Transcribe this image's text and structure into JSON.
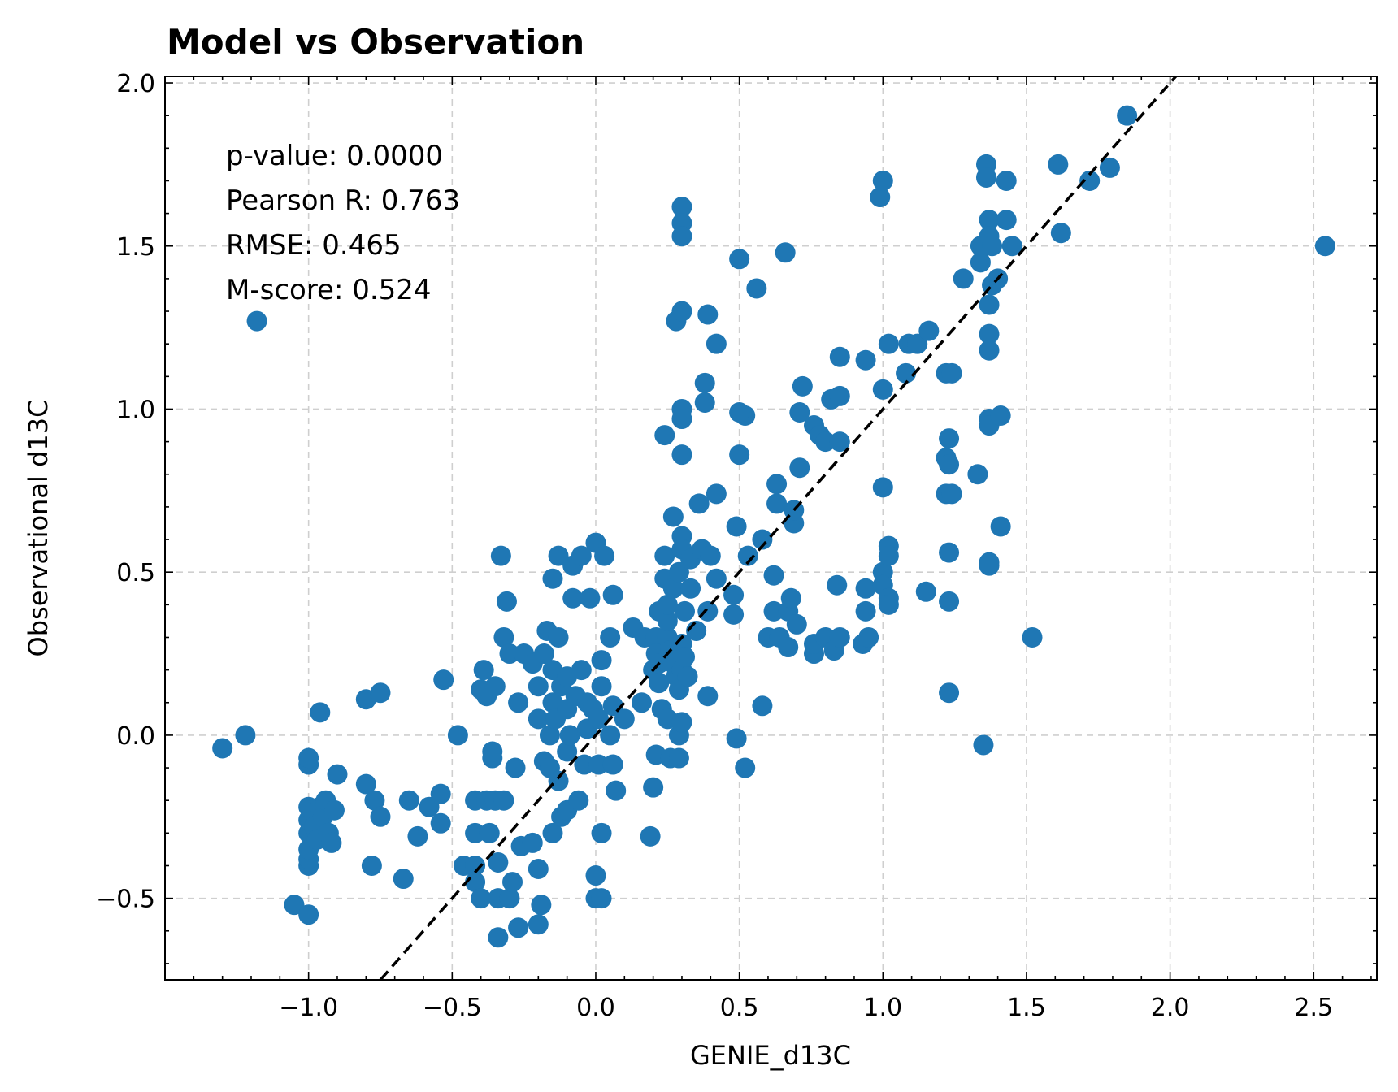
{
  "chart_data": {
    "type": "scatter",
    "title": "Model vs Observation",
    "xlabel": "GENIE_d13C",
    "ylabel": "Observational d13C",
    "xlim": [
      -1.5,
      2.72
    ],
    "ylim": [
      -0.75,
      2.02
    ],
    "x_ticks": [
      -1.0,
      -0.5,
      0.0,
      0.5,
      1.0,
      1.5,
      2.0,
      2.5
    ],
    "x_tick_labels": [
      "−1.0",
      "−0.5",
      "0.0",
      "0.5",
      "1.0",
      "1.5",
      "2.0",
      "2.5"
    ],
    "y_ticks": [
      -0.5,
      0.0,
      0.5,
      1.0,
      1.5,
      2.0
    ],
    "y_tick_labels": [
      "−0.5",
      "0.0",
      "0.5",
      "1.0",
      "1.5",
      "2.0"
    ],
    "grid": true,
    "marker_color": "#1f77b4",
    "reference_line": {
      "type": "identity",
      "style": "dashed",
      "color": "#000000"
    },
    "stats": {
      "p_value": "p-value: 0.0000",
      "pearson_r": "Pearson R: 0.763",
      "rmse": "RMSE: 0.465",
      "m_score": "M-score: 0.524"
    },
    "points": [
      [
        -1.3,
        -0.04
      ],
      [
        -1.22,
        0.0
      ],
      [
        -1.18,
        1.27
      ],
      [
        -1.05,
        -0.52
      ],
      [
        -1.0,
        -0.55
      ],
      [
        -1.0,
        -0.4
      ],
      [
        -1.0,
        -0.38
      ],
      [
        -1.0,
        -0.35
      ],
      [
        -1.0,
        -0.3
      ],
      [
        -1.0,
        -0.26
      ],
      [
        -1.0,
        -0.22
      ],
      [
        -1.0,
        -0.09
      ],
      [
        -1.0,
        -0.07
      ],
      [
        -0.98,
        -0.28
      ],
      [
        -0.97,
        -0.32
      ],
      [
        -0.96,
        -0.22
      ],
      [
        -0.95,
        -0.25
      ],
      [
        -0.94,
        -0.2
      ],
      [
        -0.93,
        -0.3
      ],
      [
        -0.92,
        -0.33
      ],
      [
        -0.91,
        -0.23
      ],
      [
        -0.9,
        -0.12
      ],
      [
        -0.96,
        0.07
      ],
      [
        -0.8,
        0.11
      ],
      [
        -0.8,
        -0.15
      ],
      [
        -0.77,
        -0.2
      ],
      [
        -0.78,
        -0.4
      ],
      [
        -0.75,
        -0.25
      ],
      [
        -0.75,
        0.13
      ],
      [
        -0.67,
        -0.44
      ],
      [
        -0.65,
        -0.2
      ],
      [
        -0.62,
        -0.31
      ],
      [
        -0.58,
        -0.22
      ],
      [
        -0.54,
        -0.27
      ],
      [
        -0.54,
        -0.18
      ],
      [
        -0.53,
        0.17
      ],
      [
        -0.48,
        0.0
      ],
      [
        -0.46,
        -0.4
      ],
      [
        -0.42,
        -0.3
      ],
      [
        -0.42,
        -0.2
      ],
      [
        -0.42,
        -0.4
      ],
      [
        -0.42,
        -0.45
      ],
      [
        -0.4,
        -0.5
      ],
      [
        -0.4,
        0.14
      ],
      [
        -0.39,
        0.2
      ],
      [
        -0.38,
        -0.2
      ],
      [
        -0.38,
        0.12
      ],
      [
        -0.37,
        -0.3
      ],
      [
        -0.36,
        -0.07
      ],
      [
        -0.36,
        -0.05
      ],
      [
        -0.35,
        0.15
      ],
      [
        -0.35,
        -0.2
      ],
      [
        -0.34,
        -0.39
      ],
      [
        -0.34,
        -0.5
      ],
      [
        -0.34,
        -0.62
      ],
      [
        -0.33,
        0.55
      ],
      [
        -0.32,
        0.3
      ],
      [
        -0.32,
        -0.2
      ],
      [
        -0.31,
        0.41
      ],
      [
        -0.3,
        -0.5
      ],
      [
        -0.3,
        0.25
      ],
      [
        -0.29,
        -0.45
      ],
      [
        -0.28,
        -0.1
      ],
      [
        -0.27,
        0.1
      ],
      [
        -0.27,
        -0.59
      ],
      [
        -0.26,
        -0.34
      ],
      [
        -0.25,
        0.25
      ],
      [
        -0.22,
        0.22
      ],
      [
        -0.22,
        -0.33
      ],
      [
        -0.2,
        0.15
      ],
      [
        -0.2,
        0.05
      ],
      [
        -0.2,
        -0.41
      ],
      [
        -0.2,
        -0.58
      ],
      [
        -0.19,
        -0.52
      ],
      [
        -0.18,
        0.25
      ],
      [
        -0.18,
        -0.08
      ],
      [
        -0.17,
        0.32
      ],
      [
        -0.16,
        0.0
      ],
      [
        -0.16,
        -0.1
      ],
      [
        -0.15,
        0.48
      ],
      [
        -0.15,
        0.2
      ],
      [
        -0.15,
        0.1
      ],
      [
        -0.15,
        -0.3
      ],
      [
        -0.14,
        0.05
      ],
      [
        -0.13,
        0.55
      ],
      [
        -0.13,
        0.3
      ],
      [
        -0.13,
        -0.14
      ],
      [
        -0.12,
        -0.25
      ],
      [
        -0.12,
        0.15
      ],
      [
        -0.1,
        0.18
      ],
      [
        -0.1,
        0.08
      ],
      [
        -0.1,
        -0.05
      ],
      [
        -0.1,
        -0.23
      ],
      [
        -0.09,
        0.0
      ],
      [
        -0.08,
        0.52
      ],
      [
        -0.08,
        0.42
      ],
      [
        -0.07,
        0.12
      ],
      [
        -0.06,
        -0.2
      ],
      [
        -0.05,
        0.2
      ],
      [
        -0.05,
        0.55
      ],
      [
        -0.04,
        -0.09
      ],
      [
        -0.03,
        0.1
      ],
      [
        -0.03,
        0.02
      ],
      [
        -0.02,
        0.42
      ],
      [
        -0.01,
        0.08
      ],
      [
        0.0,
        0.59
      ],
      [
        0.0,
        -0.43
      ],
      [
        0.0,
        -0.5
      ],
      [
        0.01,
        0.05
      ],
      [
        0.01,
        -0.09
      ],
      [
        0.02,
        0.23
      ],
      [
        0.02,
        -0.3
      ],
      [
        0.02,
        0.15
      ],
      [
        0.02,
        -0.5
      ],
      [
        0.03,
        0.55
      ],
      [
        0.05,
        0.3
      ],
      [
        0.05,
        0.0
      ],
      [
        0.06,
        -0.09
      ],
      [
        0.06,
        0.43
      ],
      [
        0.06,
        0.09
      ],
      [
        0.07,
        -0.17
      ],
      [
        0.1,
        0.05
      ],
      [
        0.13,
        0.33
      ],
      [
        0.16,
        0.1
      ],
      [
        0.17,
        0.3
      ],
      [
        0.19,
        -0.31
      ],
      [
        0.2,
        -0.16
      ],
      [
        0.2,
        0.2
      ],
      [
        0.21,
        0.3
      ],
      [
        0.21,
        0.25
      ],
      [
        0.21,
        -0.06
      ],
      [
        0.22,
        0.38
      ],
      [
        0.22,
        0.16
      ],
      [
        0.22,
        0.22
      ],
      [
        0.23,
        0.08
      ],
      [
        0.24,
        0.48
      ],
      [
        0.24,
        0.55
      ],
      [
        0.24,
        0.92
      ],
      [
        0.25,
        0.3
      ],
      [
        0.25,
        0.05
      ],
      [
        0.25,
        0.35
      ],
      [
        0.25,
        0.4
      ],
      [
        0.26,
        0.26
      ],
      [
        0.26,
        -0.07
      ],
      [
        0.27,
        0.67
      ],
      [
        0.27,
        0.45
      ],
      [
        0.27,
        0.22
      ],
      [
        0.28,
        1.27
      ],
      [
        0.28,
        0.18
      ],
      [
        0.29,
        0.5
      ],
      [
        0.29,
        0.14
      ],
      [
        0.29,
        -0.07
      ],
      [
        0.29,
        0.0
      ],
      [
        0.3,
        1.62
      ],
      [
        0.3,
        1.57
      ],
      [
        0.3,
        1.53
      ],
      [
        0.3,
        1.3
      ],
      [
        0.3,
        1.0
      ],
      [
        0.3,
        0.97
      ],
      [
        0.3,
        0.86
      ],
      [
        0.3,
        0.61
      ],
      [
        0.3,
        0.57
      ],
      [
        0.3,
        0.28
      ],
      [
        0.3,
        0.2
      ],
      [
        0.3,
        0.04
      ],
      [
        0.31,
        0.38
      ],
      [
        0.31,
        0.24
      ],
      [
        0.32,
        0.18
      ],
      [
        0.33,
        0.54
      ],
      [
        0.33,
        0.45
      ],
      [
        0.35,
        0.32
      ],
      [
        0.36,
        0.71
      ],
      [
        0.37,
        0.57
      ],
      [
        0.38,
        1.02
      ],
      [
        0.38,
        1.08
      ],
      [
        0.39,
        1.29
      ],
      [
        0.39,
        0.12
      ],
      [
        0.39,
        0.38
      ],
      [
        0.4,
        0.55
      ],
      [
        0.42,
        0.74
      ],
      [
        0.42,
        1.2
      ],
      [
        0.42,
        0.48
      ],
      [
        0.48,
        0.43
      ],
      [
        0.48,
        0.37
      ],
      [
        0.49,
        0.64
      ],
      [
        0.49,
        -0.01
      ],
      [
        0.5,
        0.86
      ],
      [
        0.5,
        1.46
      ],
      [
        0.52,
        0.98
      ],
      [
        0.5,
        0.99
      ],
      [
        0.52,
        -0.1
      ],
      [
        0.53,
        0.55
      ],
      [
        0.56,
        1.37
      ],
      [
        0.58,
        0.6
      ],
      [
        0.58,
        0.09
      ],
      [
        0.6,
        0.3
      ],
      [
        0.62,
        0.38
      ],
      [
        0.62,
        0.49
      ],
      [
        0.63,
        0.77
      ],
      [
        0.63,
        0.71
      ],
      [
        0.64,
        0.3
      ],
      [
        0.66,
        1.48
      ],
      [
        0.67,
        0.27
      ],
      [
        0.67,
        0.38
      ],
      [
        0.68,
        0.42
      ],
      [
        0.69,
        0.65
      ],
      [
        0.69,
        0.69
      ],
      [
        0.7,
        0.34
      ],
      [
        0.71,
        0.82
      ],
      [
        0.71,
        0.99
      ],
      [
        0.72,
        1.07
      ],
      [
        0.76,
        0.25
      ],
      [
        0.76,
        0.28
      ],
      [
        0.76,
        0.95
      ],
      [
        0.78,
        0.92
      ],
      [
        0.8,
        0.3
      ],
      [
        0.8,
        0.9
      ],
      [
        0.82,
        1.03
      ],
      [
        0.83,
        0.26
      ],
      [
        0.84,
        0.46
      ],
      [
        0.85,
        1.16
      ],
      [
        0.85,
        1.04
      ],
      [
        0.85,
        0.3
      ],
      [
        0.85,
        0.9
      ],
      [
        0.93,
        0.28
      ],
      [
        0.94,
        0.38
      ],
      [
        0.94,
        1.15
      ],
      [
        0.94,
        0.45
      ],
      [
        0.95,
        0.3
      ],
      [
        0.99,
        1.65
      ],
      [
        1.0,
        1.7
      ],
      [
        1.0,
        0.76
      ],
      [
        1.0,
        1.06
      ],
      [
        1.0,
        0.5
      ],
      [
        1.0,
        0.46
      ],
      [
        1.02,
        1.2
      ],
      [
        1.02,
        0.58
      ],
      [
        1.02,
        0.55
      ],
      [
        1.02,
        0.42
      ],
      [
        1.02,
        0.4
      ],
      [
        1.08,
        1.11
      ],
      [
        1.09,
        1.2
      ],
      [
        1.12,
        1.2
      ],
      [
        1.15,
        0.44
      ],
      [
        1.16,
        1.24
      ],
      [
        1.22,
        1.11
      ],
      [
        1.22,
        0.85
      ],
      [
        1.22,
        0.74
      ],
      [
        1.23,
        0.83
      ],
      [
        1.23,
        0.91
      ],
      [
        1.23,
        0.56
      ],
      [
        1.23,
        0.41
      ],
      [
        1.23,
        0.13
      ],
      [
        1.24,
        1.11
      ],
      [
        1.24,
        0.74
      ],
      [
        1.28,
        1.4
      ],
      [
        1.33,
        0.8
      ],
      [
        1.34,
        1.45
      ],
      [
        1.34,
        1.5
      ],
      [
        1.35,
        1.5
      ],
      [
        1.35,
        -0.03
      ],
      [
        1.36,
        1.75
      ],
      [
        1.36,
        1.71
      ],
      [
        1.37,
        1.58
      ],
      [
        1.37,
        1.53
      ],
      [
        1.37,
        1.32
      ],
      [
        1.37,
        1.23
      ],
      [
        1.37,
        1.18
      ],
      [
        1.37,
        0.97
      ],
      [
        1.37,
        0.95
      ],
      [
        1.37,
        0.53
      ],
      [
        1.37,
        0.52
      ],
      [
        1.38,
        1.38
      ],
      [
        1.38,
        1.5
      ],
      [
        1.4,
        1.4
      ],
      [
        1.41,
        0.98
      ],
      [
        1.41,
        0.64
      ],
      [
        1.43,
        1.7
      ],
      [
        1.43,
        1.58
      ],
      [
        1.45,
        1.5
      ],
      [
        1.52,
        0.3
      ],
      [
        1.61,
        1.75
      ],
      [
        1.62,
        1.54
      ],
      [
        1.72,
        1.7
      ],
      [
        1.79,
        1.74
      ],
      [
        1.85,
        1.9
      ],
      [
        2.54,
        1.5
      ]
    ]
  }
}
